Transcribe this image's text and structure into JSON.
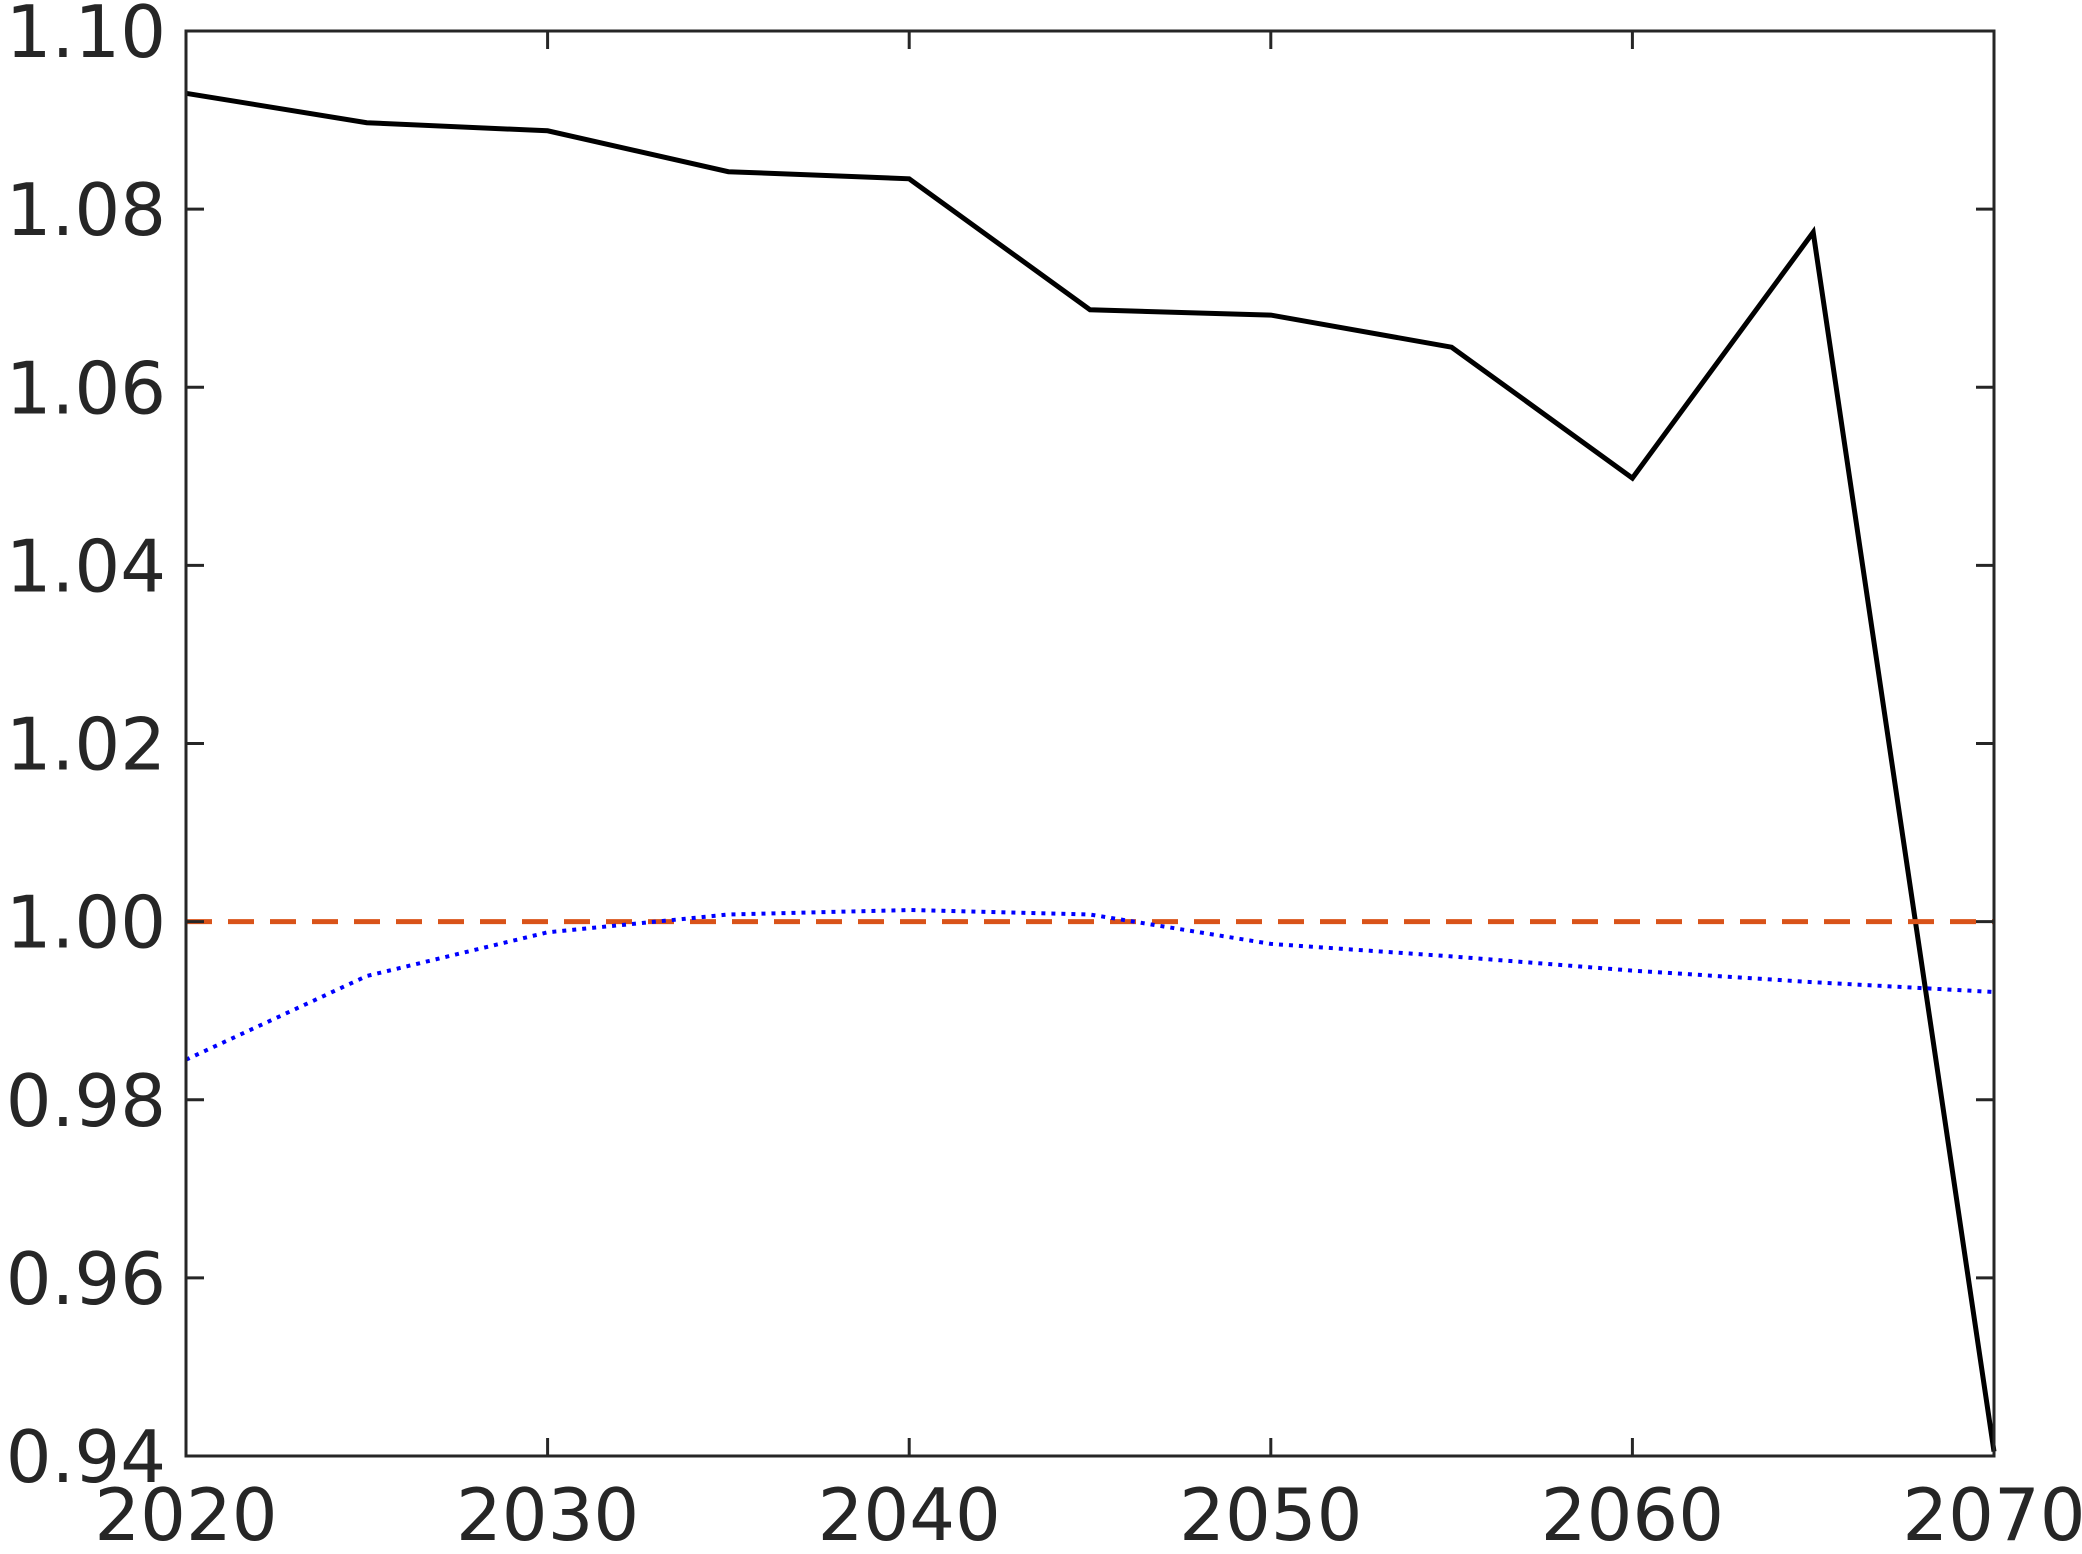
{
  "chart_data": {
    "type": "line",
    "title": "",
    "xlabel": "",
    "ylabel": "",
    "xlim": [
      2020,
      2070
    ],
    "ylim": [
      0.94,
      1.1
    ],
    "x_ticks": [
      2020,
      2030,
      2040,
      2050,
      2060,
      2070
    ],
    "x_tick_labels": [
      "2020",
      "2030",
      "2040",
      "2050",
      "2060",
      "2070"
    ],
    "y_ticks": [
      0.94,
      0.96,
      0.98,
      1.0,
      1.02,
      1.04,
      1.06,
      1.08,
      1.1
    ],
    "y_tick_labels": [
      "0.94",
      "0.96",
      "0.98",
      "1.00",
      "1.02",
      "1.04",
      "1.06",
      "1.08",
      "1.10"
    ],
    "grid": false,
    "legend": "none",
    "series": [
      {
        "style": "solid",
        "color": "#000000",
        "x": [
          2020,
          2025,
          2030,
          2035,
          2040,
          2045,
          2050,
          2055,
          2060,
          2065,
          2070
        ],
        "values": [
          1.093,
          1.0897,
          1.0888,
          1.0842,
          1.0834,
          1.0687,
          1.0681,
          1.0645,
          1.0498,
          1.0774,
          0.9405
        ]
      },
      {
        "style": "dashed",
        "color": "#D95319",
        "x": [
          2020,
          2070
        ],
        "values": [
          1.0,
          1.0
        ]
      },
      {
        "style": "dotted",
        "color": "#0000FF",
        "x": [
          2020,
          2025,
          2030,
          2035,
          2040,
          2045,
          2050,
          2055,
          2060,
          2065,
          2070
        ],
        "values": [
          0.9845,
          0.9939,
          0.9988,
          1.0008,
          1.0013,
          1.0008,
          0.9975,
          0.9961,
          0.9945,
          0.9932,
          0.9921
        ]
      }
    ]
  }
}
